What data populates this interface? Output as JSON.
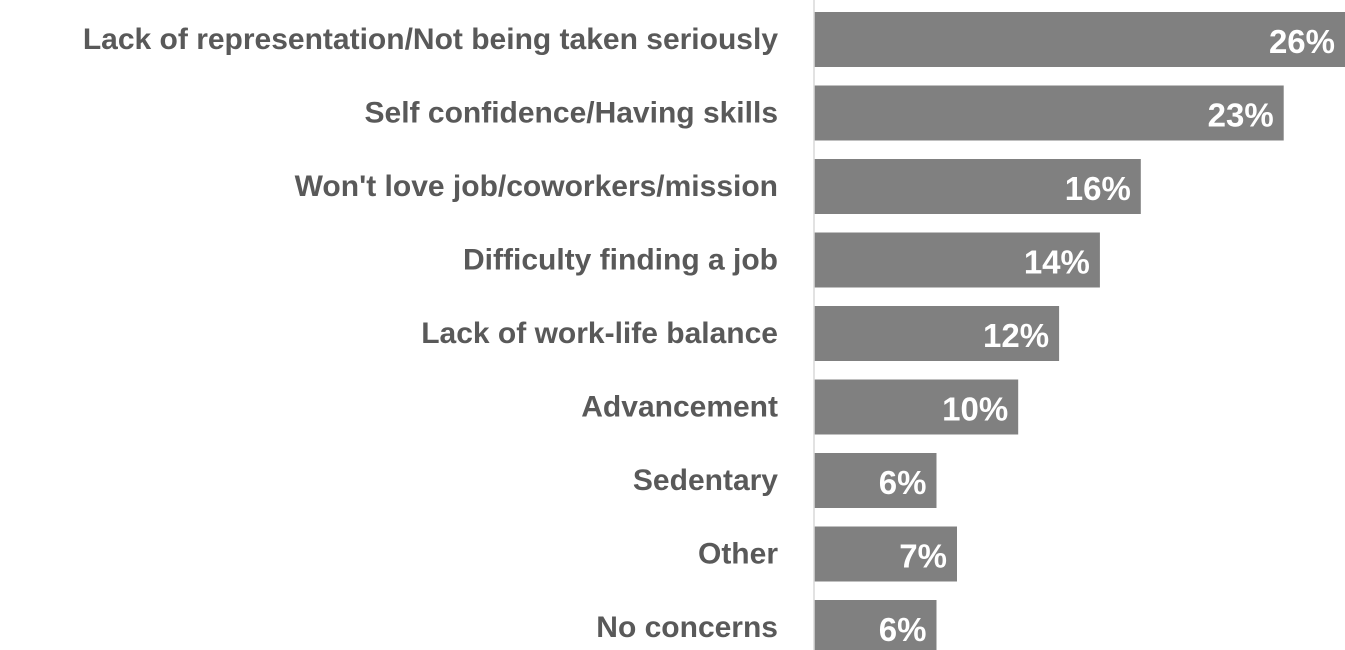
{
  "chart_data": {
    "type": "bar",
    "orientation": "horizontal",
    "categories": [
      "Lack of representation/Not being taken seriously",
      "Self confidence/Having skills",
      "Won't love job/coworkers/mission",
      "Difficulty finding a job",
      "Lack of work-life balance",
      "Advancement",
      "Sedentary",
      "Other",
      "No concerns"
    ],
    "values": [
      26,
      23,
      16,
      14,
      12,
      10,
      6,
      7,
      6
    ],
    "data_labels": [
      "26%",
      "23%",
      "16%",
      "14%",
      "12%",
      "10%",
      "6%",
      "7%",
      "6%"
    ],
    "xlim": [
      0,
      26
    ],
    "title": "",
    "xlabel": "",
    "ylabel": "",
    "grid": false,
    "legend": "none",
    "bar_color": "#808080",
    "label_color": "#595959",
    "data_label_color": "#ffffff",
    "axis_color": "#d9d9d9"
  }
}
